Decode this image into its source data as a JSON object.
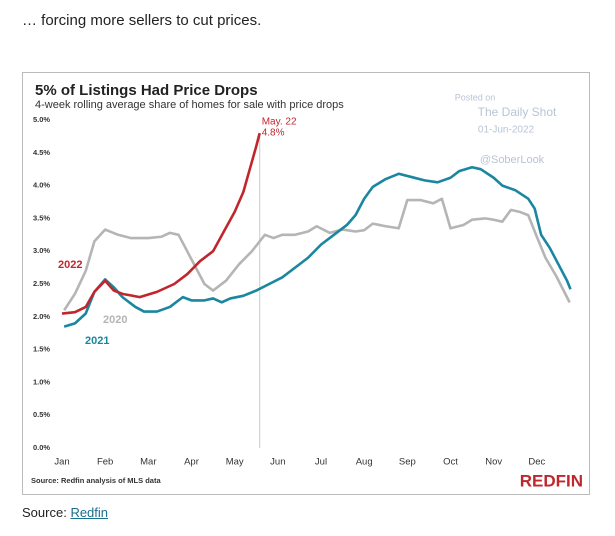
{
  "header": "… forcing more sellers to cut prices.",
  "footer": {
    "prefix": "Source:",
    "link": "Redfin"
  },
  "chart_data": {
    "type": "line",
    "title": "5% of Listings Had Price Drops",
    "subtitle": "4-week rolling average share of homes for sale with price drops",
    "source_note": "Source: Redfin analysis of MLS data",
    "logo": "REDFIN",
    "watermark": [
      "Posted on",
      "The Daily Shot",
      "01-Jun-2022",
      "@SoberLook"
    ],
    "xlim": [
      0,
      12
    ],
    "xticks": [
      {
        "value": 0,
        "label": "Jan"
      },
      {
        "value": 1,
        "label": "Feb"
      },
      {
        "value": 2,
        "label": "Mar"
      },
      {
        "value": 3,
        "label": "Apr"
      },
      {
        "value": 4,
        "label": "May"
      },
      {
        "value": 5,
        "label": "Jun"
      },
      {
        "value": 6,
        "label": "Jul"
      },
      {
        "value": 7,
        "label": "Aug"
      },
      {
        "value": 8,
        "label": "Sep"
      },
      {
        "value": 9,
        "label": "Oct"
      },
      {
        "value": 10,
        "label": "Nov"
      },
      {
        "value": 11,
        "label": "Dec"
      }
    ],
    "ylim": [
      0,
      5
    ],
    "yticks": [
      {
        "value": 0,
        "label": "0.0%"
      },
      {
        "value": 0.5,
        "label": "0.5%"
      },
      {
        "value": 1,
        "label": "1.0%"
      },
      {
        "value": 1.5,
        "label": "1.5%"
      },
      {
        "value": 2,
        "label": "2.0%"
      },
      {
        "value": 2.5,
        "label": "2.5%"
      },
      {
        "value": 3,
        "label": "3.0%"
      },
      {
        "value": 3.5,
        "label": "3.5%"
      },
      {
        "value": 4,
        "label": "4.0%"
      },
      {
        "value": 4.5,
        "label": "4.5%"
      },
      {
        "value": 5,
        "label": "5.0%"
      }
    ],
    "grid": false,
    "annotation": {
      "label": "May. 22",
      "x": 4.58,
      "value": 4.8,
      "value_label": "4.8%",
      "color": "#c0272d"
    },
    "series": [
      {
        "name": "2020",
        "color": "#b5b5b5",
        "x": [
          0.05,
          0.3,
          0.55,
          0.75,
          1.0,
          1.3,
          1.6,
          2.0,
          2.3,
          2.5,
          2.7,
          2.9,
          3.1,
          3.3,
          3.5,
          3.8,
          4.1,
          4.4,
          4.7,
          4.9,
          5.1,
          5.4,
          5.7,
          5.9,
          6.2,
          6.5,
          6.8,
          7.0,
          7.2,
          7.5,
          7.8,
          8.0,
          8.3,
          8.6,
          8.8,
          9.0,
          9.3,
          9.5,
          9.8,
          10.0,
          10.2,
          10.4,
          10.6,
          10.8,
          11.0,
          11.2,
          11.45,
          11.76
        ],
        "values": [
          2.1,
          2.35,
          2.7,
          3.15,
          3.33,
          3.25,
          3.2,
          3.2,
          3.22,
          3.28,
          3.25,
          3.0,
          2.75,
          2.5,
          2.4,
          2.55,
          2.8,
          3.0,
          3.25,
          3.2,
          3.25,
          3.25,
          3.3,
          3.38,
          3.28,
          3.33,
          3.3,
          3.32,
          3.42,
          3.38,
          3.35,
          3.78,
          3.78,
          3.73,
          3.8,
          3.35,
          3.4,
          3.48,
          3.5,
          3.48,
          3.45,
          3.63,
          3.6,
          3.55,
          3.22,
          2.9,
          2.62,
          2.22
        ]
      },
      {
        "name": "2021",
        "color": "#1a86a0",
        "x": [
          0.05,
          0.3,
          0.55,
          0.75,
          1.0,
          1.2,
          1.4,
          1.7,
          1.9,
          2.2,
          2.5,
          2.8,
          3.0,
          3.3,
          3.5,
          3.7,
          3.9,
          4.2,
          4.5,
          4.8,
          5.1,
          5.4,
          5.7,
          6.0,
          6.3,
          6.6,
          6.8,
          7.0,
          7.2,
          7.5,
          7.8,
          8.1,
          8.4,
          8.7,
          9.0,
          9.2,
          9.5,
          9.7,
          10.0,
          10.2,
          10.5,
          10.8,
          10.95,
          11.1,
          11.3,
          11.5,
          11.7,
          11.78
        ],
        "values": [
          1.85,
          1.9,
          2.05,
          2.38,
          2.57,
          2.45,
          2.3,
          2.15,
          2.08,
          2.08,
          2.15,
          2.3,
          2.25,
          2.25,
          2.28,
          2.22,
          2.28,
          2.32,
          2.4,
          2.5,
          2.6,
          2.75,
          2.9,
          3.1,
          3.25,
          3.4,
          3.55,
          3.8,
          3.98,
          4.1,
          4.18,
          4.13,
          4.08,
          4.05,
          4.12,
          4.22,
          4.28,
          4.25,
          4.12,
          4.0,
          3.93,
          3.8,
          3.65,
          3.25,
          3.05,
          2.8,
          2.55,
          2.42
        ]
      },
      {
        "name": "2022",
        "color": "#c0272d",
        "x": [
          0,
          0.3,
          0.55,
          0.75,
          1.0,
          1.2,
          1.4,
          1.8,
          2.2,
          2.6,
          2.9,
          3.2,
          3.5,
          3.75,
          4.0,
          4.2,
          4.35,
          4.5,
          4.58
        ],
        "values": [
          2.05,
          2.07,
          2.15,
          2.38,
          2.55,
          2.4,
          2.35,
          2.3,
          2.38,
          2.5,
          2.65,
          2.85,
          3.0,
          3.3,
          3.6,
          3.9,
          4.25,
          4.6,
          4.8
        ]
      }
    ]
  }
}
